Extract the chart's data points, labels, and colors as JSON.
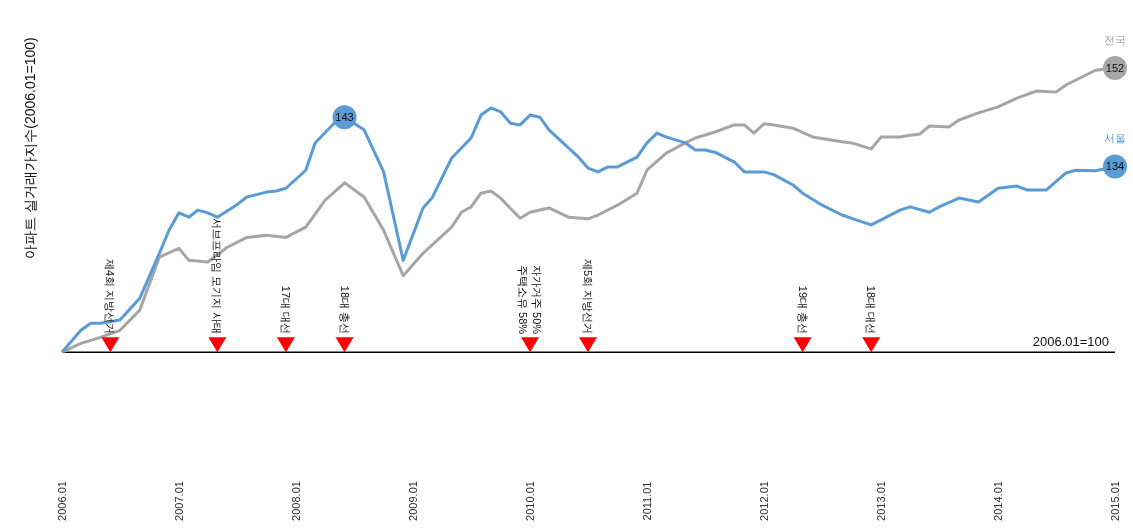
{
  "chart_data": {
    "type": "line",
    "ylabel": "아파트 실거래가지수(2006.01=100)",
    "xlim": [
      "2006-01",
      "2015-01"
    ],
    "xticks": [
      {
        "value": "2006-01",
        "label": "2006.01"
      },
      {
        "value": "2007-01",
        "label": "2007.01"
      },
      {
        "value": "2008-01",
        "label": "2008.01"
      },
      {
        "value": "2009-01",
        "label": "2009.01"
      },
      {
        "value": "2010-01",
        "label": "2010.01"
      },
      {
        "value": "2011-01",
        "label": "2011.01"
      },
      {
        "value": "2012-01",
        "label": "2012.01"
      },
      {
        "value": "2013-01",
        "label": "2013.01"
      },
      {
        "value": "2014-01",
        "label": "2014.01"
      },
      {
        "value": "2015-01",
        "label": "2015.01"
      }
    ],
    "grid": false,
    "legend": false,
    "series": [
      {
        "name": "전국",
        "color": "#a6a6a6",
        "x": [
          "2006-01",
          "2006-03",
          "2006-05",
          "2006-07",
          "2006-09",
          "2006-11",
          "2007-01",
          "2007-02",
          "2007-04",
          "2007-06",
          "2007-08",
          "2007-10",
          "2007-12",
          "2008-02",
          "2008-04",
          "2008-06",
          "2008-08",
          "2008-10",
          "2008-12",
          "2009-02",
          "2009-03",
          "2009-05",
          "2009-06",
          "2009-07",
          "2009-08",
          "2009-09",
          "2009-10",
          "2009-12",
          "2010-01",
          "2010-03",
          "2010-05",
          "2010-07",
          "2010-08",
          "2010-10",
          "2010-12",
          "2011-01",
          "2011-03",
          "2011-05",
          "2011-06",
          "2011-08",
          "2011-10",
          "2011-11",
          "2011-12",
          "2012-01",
          "2012-02",
          "2012-04",
          "2012-06",
          "2012-09",
          "2012-10",
          "2012-12",
          "2013-01",
          "2013-03",
          "2013-04",
          "2013-05",
          "2013-06",
          "2013-08",
          "2013-09",
          "2013-11",
          "2014-01",
          "2014-03",
          "2014-05",
          "2014-07",
          "2014-08",
          "2014-11",
          "2015-01"
        ],
        "values": [
          100,
          101.6,
          102.7,
          104,
          107.7,
          117.4,
          119,
          116.8,
          116.5,
          119.2,
          121,
          121.4,
          121,
          122.9,
          127.8,
          131,
          128.4,
          122.3,
          114,
          118.1,
          119.6,
          122.9,
          125.6,
          126.6,
          129.1,
          129.5,
          128.2,
          124.5,
          125.6,
          126.4,
          124.7,
          124.4,
          125.1,
          126.9,
          129.1,
          133.3,
          136.4,
          138.3,
          139.2,
          140.3,
          141.6,
          141.6,
          140.1,
          141.8,
          141.6,
          141,
          139.4,
          138.5,
          138.3,
          137.2,
          139.4,
          139.4,
          139.7,
          139.9,
          141.4,
          141.2,
          142.5,
          143.8,
          144.9,
          146.5,
          147.8,
          147.6,
          148.9,
          151.6,
          152
        ],
        "value_labels": [
          null,
          null,
          null,
          null,
          null,
          null,
          null,
          null,
          null,
          null,
          null,
          null,
          null,
          null,
          null,
          null,
          null,
          null,
          null,
          null,
          null,
          null,
          null,
          null,
          null,
          null,
          null,
          null,
          null,
          null,
          null,
          null,
          null,
          null,
          null,
          null,
          null,
          null,
          null,
          null,
          null,
          null,
          null,
          null,
          null,
          null,
          null,
          null,
          null,
          null,
          null,
          null,
          null,
          null,
          null,
          null,
          null,
          null,
          null,
          null,
          null,
          null,
          null,
          null,
          "152"
        ]
      },
      {
        "name": "서울",
        "color": "#5b9bd5",
        "x": [
          "2006-01",
          "2006-03",
          "2006-04",
          "2006-05",
          "2006-07",
          "2006-09",
          "2006-11",
          "2006-12",
          "2007-01",
          "2007-02",
          "2007-03",
          "2007-04",
          "2007-05",
          "2007-07",
          "2007-08",
          "2007-10",
          "2007-11",
          "2007-12",
          "2008-02",
          "2008-03",
          "2008-05",
          "2008-06",
          "2008-08",
          "2008-10",
          "2008-12",
          "2009-02",
          "2009-03",
          "2009-04",
          "2009-05",
          "2009-07",
          "2009-08",
          "2009-09",
          "2009-10",
          "2009-11",
          "2009-12",
          "2010-01",
          "2010-02",
          "2010-03",
          "2010-05",
          "2010-06",
          "2010-07",
          "2010-08",
          "2010-09",
          "2010-10",
          "2010-12",
          "2011-01",
          "2011-02",
          "2011-03",
          "2011-05",
          "2011-06",
          "2011-07",
          "2011-08",
          "2011-10",
          "2011-11",
          "2012-01",
          "2012-02",
          "2012-04",
          "2012-05",
          "2012-07",
          "2012-09",
          "2012-10",
          "2012-12",
          "2013-01",
          "2013-03",
          "2013-04",
          "2013-06",
          "2013-07",
          "2013-09",
          "2013-11",
          "2014-01",
          "2014-03",
          "2014-04",
          "2014-06",
          "2014-08",
          "2014-09",
          "2014-11",
          "2015-01"
        ],
        "values": [
          100,
          104,
          105.3,
          105.3,
          105.9,
          109.9,
          118.1,
          122.3,
          125.5,
          124.7,
          126,
          125.5,
          124.7,
          127,
          128.4,
          129.3,
          129.5,
          130,
          133.3,
          138.3,
          142,
          143,
          140.7,
          133,
          116.8,
          126.4,
          128.2,
          131.9,
          135.5,
          139.2,
          143.4,
          144.7,
          144,
          141.9,
          141.6,
          143.4,
          143,
          140.7,
          137.4,
          135.7,
          133.7,
          133,
          133.9,
          133.9,
          135.7,
          138.3,
          140.1,
          139.4,
          138.3,
          137,
          137,
          136.6,
          134.8,
          133,
          133,
          132.5,
          130.6,
          129.1,
          126.9,
          125.1,
          124.5,
          123.3,
          124.2,
          126,
          126.6,
          125.6,
          126.6,
          128.2,
          127.5,
          130,
          130.4,
          129.7,
          129.7,
          132.8,
          133.3,
          133.2,
          134
        ],
        "value_labels": [
          null,
          null,
          null,
          null,
          null,
          null,
          null,
          null,
          null,
          null,
          null,
          null,
          null,
          null,
          null,
          null,
          null,
          null,
          null,
          null,
          null,
          "143",
          null,
          null,
          null,
          null,
          null,
          null,
          null,
          null,
          null,
          null,
          null,
          null,
          null,
          null,
          null,
          null,
          null,
          null,
          null,
          null,
          null,
          null,
          null,
          null,
          null,
          null,
          null,
          null,
          null,
          null,
          null,
          null,
          null,
          null,
          null,
          null,
          null,
          null,
          null,
          null,
          null,
          null,
          null,
          null,
          null,
          null,
          null,
          null,
          null,
          null,
          null,
          null,
          null,
          null,
          "134"
        ]
      }
    ],
    "ref_lines": [
      {
        "axis": "y",
        "value": 100,
        "label": "2006.01=100",
        "color": "#000000"
      }
    ],
    "annotations": [
      {
        "text": "제4회 지방선거",
        "x": "2006-06",
        "y": 100
      },
      {
        "text": "서브프라임 모기지 사태",
        "x": "2007-05",
        "y": 100
      },
      {
        "text": "17대 대선",
        "x": "2007-12",
        "y": 100
      },
      {
        "text": "18대 총선",
        "x": "2008-06",
        "y": 100
      },
      {
        "text": "자가거주 50%\n주택소유 58%",
        "x": "2010-01",
        "y": 100
      },
      {
        "text": "제5회 지방선거",
        "x": "2010-07",
        "y": 100
      },
      {
        "text": "19대 총선",
        "x": "2012-05",
        "y": 100
      },
      {
        "text": "18대 대선",
        "x": "2012-12",
        "y": 100
      }
    ]
  }
}
